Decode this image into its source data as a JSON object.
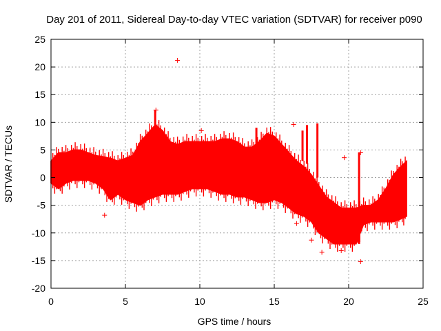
{
  "chart_data": {
    "type": "scatter",
    "title": "Day 201 of 2011, Sidereal Day-to-day VTEC variation (SDTVAR) for receiver p090",
    "xlabel": "GPS time / hours",
    "ylabel": "SDTVAR / TECUs",
    "xlim": [
      0,
      25
    ],
    "ylim": [
      -20,
      25
    ],
    "xticks": [
      0,
      5,
      10,
      15,
      20,
      25
    ],
    "yticks": [
      -20,
      -15,
      -10,
      -5,
      0,
      5,
      10,
      15,
      20,
      25
    ],
    "grid": true,
    "marker": "+",
    "color": "#ff0000",
    "series": [
      {
        "name": "SDTVAR",
        "envelope_x": [
          0.0,
          0.5,
          1.0,
          1.5,
          2.0,
          2.5,
          3.0,
          3.5,
          4.0,
          4.5,
          5.0,
          5.5,
          6.0,
          6.5,
          7.0,
          7.5,
          8.0,
          8.5,
          9.0,
          9.5,
          10.0,
          10.5,
          11.0,
          11.5,
          12.0,
          12.5,
          13.0,
          13.5,
          14.0,
          14.5,
          15.0,
          15.5,
          16.0,
          16.5,
          17.0,
          17.5,
          18.0,
          18.5,
          19.0,
          19.5,
          20.0,
          20.5,
          21.0,
          21.5,
          22.0,
          22.5,
          23.0,
          23.5,
          23.9
        ],
        "upper": [
          3.0,
          4.5,
          4.5,
          5.0,
          5.0,
          4.5,
          4.0,
          3.8,
          3.5,
          3.0,
          3.5,
          4.0,
          6.5,
          8.0,
          9.5,
          8.5,
          6.5,
          6.0,
          6.5,
          6.5,
          6.5,
          6.5,
          6.5,
          7.0,
          7.0,
          6.5,
          5.5,
          5.5,
          6.5,
          8.0,
          7.5,
          6.0,
          4.5,
          3.0,
          2.0,
          0.5,
          -1.5,
          -3.5,
          -4.5,
          -5.5,
          -5.5,
          -5.5,
          -5.0,
          -5.0,
          -4.0,
          -2.0,
          0.5,
          2.0,
          3.0
        ],
        "lower": [
          -1.0,
          -2.0,
          -1.0,
          -0.5,
          -0.5,
          -0.5,
          -1.0,
          -2.0,
          -4.0,
          -3.0,
          -4.0,
          -4.5,
          -5.0,
          -4.0,
          -3.5,
          -3.0,
          -3.0,
          -3.0,
          -2.5,
          -2.0,
          -2.0,
          -2.0,
          -2.5,
          -3.0,
          -3.0,
          -3.5,
          -3.5,
          -4.0,
          -4.5,
          -4.5,
          -4.0,
          -4.5,
          -5.5,
          -6.5,
          -7.0,
          -8.0,
          -10.0,
          -11.0,
          -12.0,
          -12.0,
          -12.0,
          -12.0,
          -8.5,
          -8.0,
          -8.0,
          -8.0,
          -8.0,
          -7.5,
          -7.0
        ],
        "outliers": [
          {
            "x": 8.5,
            "y": 21.2
          },
          {
            "x": 10.1,
            "y": 8.5
          },
          {
            "x": 16.3,
            "y": 9.6
          },
          {
            "x": 19.7,
            "y": 3.6
          },
          {
            "x": 20.8,
            "y": 4.5
          },
          {
            "x": 20.8,
            "y": -15.2
          },
          {
            "x": 16.5,
            "y": -8.3
          },
          {
            "x": 17.5,
            "y": -11.3
          },
          {
            "x": 18.2,
            "y": -13.5
          },
          {
            "x": 19.2,
            "y": -11.5
          },
          {
            "x": 19.5,
            "y": -13.2
          },
          {
            "x": 3.6,
            "y": -6.8
          },
          {
            "x": 7.05,
            "y": 12.2
          },
          {
            "x": 0.6,
            "y": -1.7
          }
        ],
        "spikes": [
          {
            "x": 7.0,
            "ymin": 7.0,
            "ymax": 12.2
          },
          {
            "x": 16.9,
            "ymin": 3.0,
            "ymax": 8.5
          },
          {
            "x": 17.2,
            "ymin": 2.5,
            "ymax": 9.5
          },
          {
            "x": 17.9,
            "ymin": 0.0,
            "ymax": 9.8
          },
          {
            "x": 20.7,
            "ymin": -12.0,
            "ymax": 4.5
          },
          {
            "x": 13.8,
            "ymin": 5.0,
            "ymax": 9.0
          }
        ]
      }
    ]
  }
}
